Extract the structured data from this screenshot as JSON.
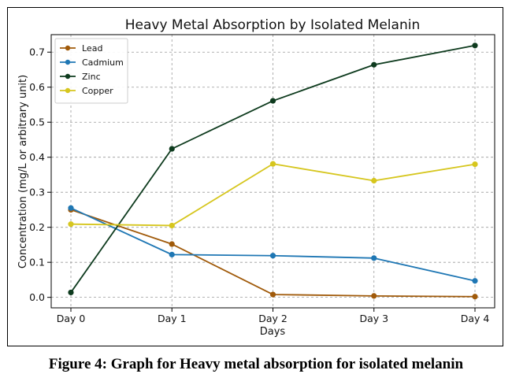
{
  "chart_data": {
    "type": "line",
    "title": "Heavy Metal Absorption by Isolated Melanin",
    "xlabel": "Days",
    "ylabel": "Concentration (mg/L or arbitrary unit)",
    "categories": [
      "Day 0",
      "Day 1",
      "Day 2",
      "Day 3",
      "Day 4"
    ],
    "ylim": [
      -0.03,
      0.75
    ],
    "yticks": [
      0.0,
      0.1,
      0.2,
      0.3,
      0.4,
      0.5,
      0.6,
      0.7
    ],
    "ytick_labels": [
      "0.0",
      "0.1",
      "0.2",
      "0.3",
      "0.4",
      "0.5",
      "0.6",
      "0.7"
    ],
    "grid": true,
    "legend_position": "top-left",
    "series": [
      {
        "name": "Lead",
        "color": "#a05a0a",
        "values": [
          0.25,
          0.152,
          0.008,
          0.004,
          0.002
        ]
      },
      {
        "name": "Cadmium",
        "color": "#1f77b4",
        "values": [
          0.255,
          0.122,
          0.119,
          0.112,
          0.047
        ]
      },
      {
        "name": "Zinc",
        "color": "#0e3b1e",
        "values": [
          0.014,
          0.424,
          0.561,
          0.664,
          0.719
        ]
      },
      {
        "name": "Copper",
        "color": "#d6c61e",
        "values": [
          0.209,
          0.205,
          0.381,
          0.333,
          0.38
        ]
      }
    ]
  },
  "caption": "Figure 4: Graph for Heavy metal absorption for isolated melanin"
}
